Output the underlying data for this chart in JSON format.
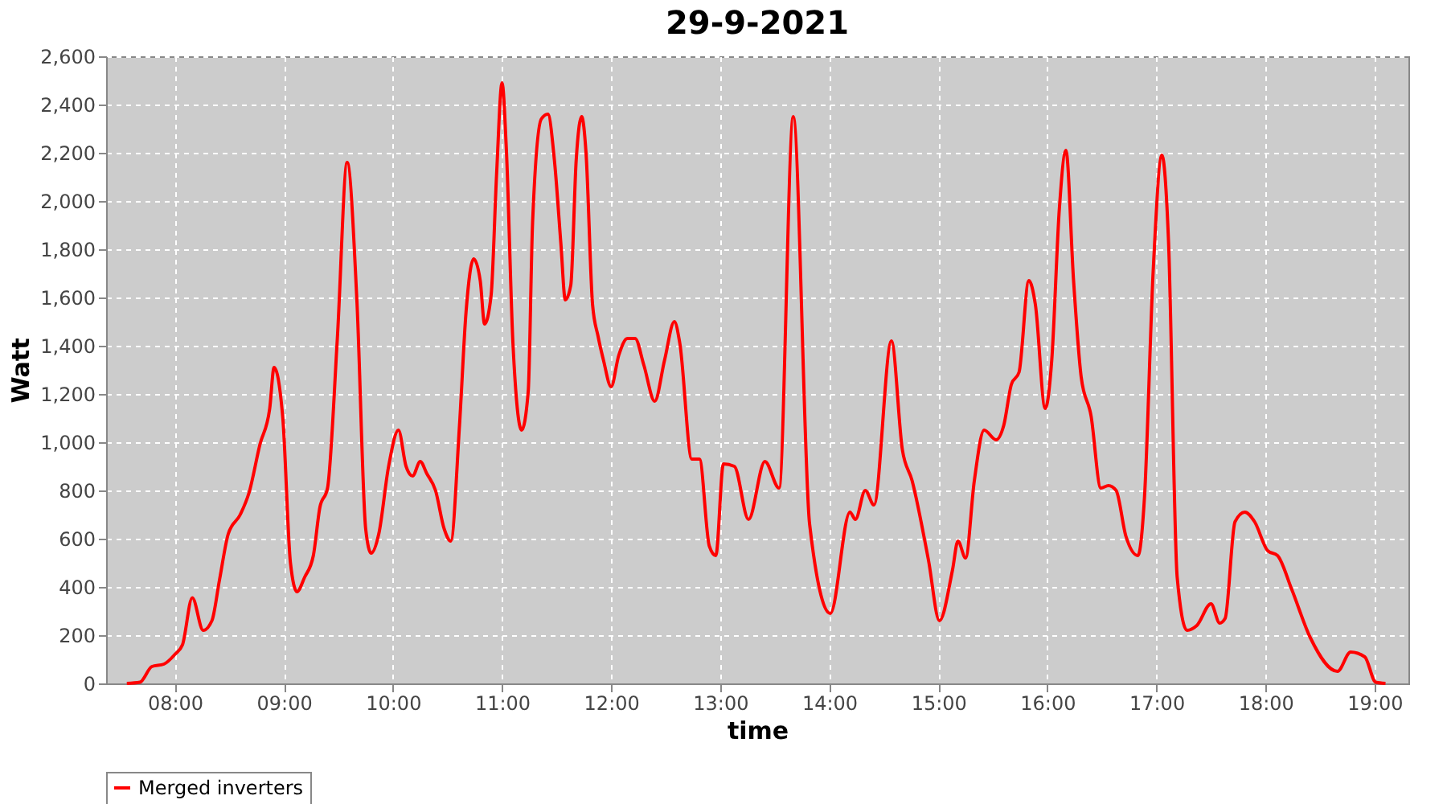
{
  "chart_data": {
    "type": "line",
    "title": "29-9-2021",
    "xlabel": "time",
    "ylabel": "Watt",
    "x": [
      7.56,
      7.68,
      7.79,
      7.9,
      8.0,
      8.07,
      8.16,
      8.26,
      8.34,
      8.41,
      8.49,
      8.6,
      8.68,
      8.78,
      8.87,
      8.91,
      8.99,
      9.06,
      9.12,
      9.19,
      9.27,
      9.33,
      9.4,
      9.49,
      9.58,
      9.67,
      9.75,
      9.8,
      9.87,
      9.96,
      10.05,
      10.12,
      10.18,
      10.25,
      10.31,
      10.39,
      10.47,
      10.53,
      10.61,
      10.67,
      10.74,
      10.8,
      10.84,
      10.9,
      10.95,
      11.0,
      11.04,
      11.1,
      11.18,
      11.24,
      11.28,
      11.36,
      11.42,
      11.48,
      11.54,
      11.58,
      11.63,
      11.68,
      11.73,
      11.77,
      11.83,
      11.88,
      11.93,
      12.0,
      12.07,
      12.15,
      12.22,
      12.3,
      12.4,
      12.49,
      12.58,
      12.63,
      12.74,
      12.81,
      12.9,
      12.96,
      13.03,
      13.13,
      13.26,
      13.41,
      13.54,
      13.67,
      13.82,
      14.01,
      14.19,
      14.24,
      14.33,
      14.41,
      14.57,
      14.67,
      14.76,
      14.91,
      15.01,
      15.13,
      15.18,
      15.25,
      15.33,
      15.42,
      15.53,
      15.6,
      15.67,
      15.74,
      15.83,
      15.89,
      15.98,
      16.04,
      16.11,
      16.17,
      16.24,
      16.31,
      16.4,
      16.49,
      16.56,
      16.63,
      16.72,
      16.83,
      16.89,
      16.97,
      17.05,
      17.11,
      17.19,
      17.28,
      17.37,
      17.5,
      17.58,
      17.63,
      17.72,
      17.81,
      17.9,
      18.02,
      18.11,
      18.24,
      18.41,
      18.66,
      18.78,
      18.91,
      19.01,
      19.1
    ],
    "series": [
      {
        "name": "Merged inverters",
        "color": "#ff0000",
        "values": [
          0,
          5,
          70,
          80,
          120,
          160,
          355,
          220,
          260,
          430,
          620,
          700,
          790,
          990,
          1140,
          1310,
          1100,
          500,
          380,
          440,
          530,
          730,
          810,
          1430,
          2160,
          1580,
          640,
          540,
          620,
          900,
          1050,
          900,
          860,
          920,
          870,
          800,
          640,
          590,
          1070,
          1540,
          1760,
          1670,
          1490,
          1610,
          2110,
          2490,
          2210,
          1410,
          1050,
          1210,
          1910,
          2340,
          2360,
          2170,
          1820,
          1590,
          1650,
          2170,
          2350,
          2200,
          1570,
          1440,
          1340,
          1230,
          1360,
          1430,
          1430,
          1320,
          1170,
          1340,
          1500,
          1410,
          930,
          930,
          570,
          530,
          910,
          900,
          680,
          920,
          810,
          2350,
          660,
          290,
          710,
          680,
          800,
          740,
          1420,
          970,
          840,
          510,
          260,
          470,
          590,
          520,
          840,
          1050,
          1010,
          1070,
          1240,
          1290,
          1670,
          1570,
          1140,
          1340,
          1970,
          2210,
          1670,
          1270,
          1110,
          810,
          820,
          800,
          610,
          530,
          770,
          1710,
          2190,
          1840,
          440,
          220,
          240,
          330,
          250,
          270,
          670,
          710,
          670,
          550,
          530,
          390,
          190,
          50,
          130,
          110,
          5,
          0
        ]
      }
    ],
    "xlim": [
      7.37,
      19.31
    ],
    "xticks": [
      {
        "value": 8,
        "label": "08:00"
      },
      {
        "value": 9,
        "label": "09:00"
      },
      {
        "value": 10,
        "label": "10:00"
      },
      {
        "value": 11,
        "label": "11:00"
      },
      {
        "value": 12,
        "label": "12:00"
      },
      {
        "value": 13,
        "label": "13:00"
      },
      {
        "value": 14,
        "label": "14:00"
      },
      {
        "value": 15,
        "label": "15:00"
      },
      {
        "value": 16,
        "label": "16:00"
      },
      {
        "value": 17,
        "label": "17:00"
      },
      {
        "value": 18,
        "label": "18:00"
      },
      {
        "value": 19,
        "label": "19:00"
      }
    ],
    "ylim": [
      0,
      2600
    ],
    "yticks": [
      0,
      200,
      400,
      600,
      800,
      {
        "value": 1000,
        "label": "1,000"
      },
      {
        "value": 1200,
        "label": "1,200"
      },
      {
        "value": 1400,
        "label": "1,400"
      },
      {
        "value": 1600,
        "label": "1,600"
      },
      {
        "value": 1800,
        "label": "1,800"
      },
      {
        "value": 2000,
        "label": "2,000"
      },
      {
        "value": 2200,
        "label": "2,200"
      },
      {
        "value": 2400,
        "label": "2,400"
      },
      {
        "value": 2600,
        "label": "2,600"
      }
    ],
    "grid": true,
    "legend": "bottom",
    "marker": "none",
    "line_style": "solid"
  }
}
